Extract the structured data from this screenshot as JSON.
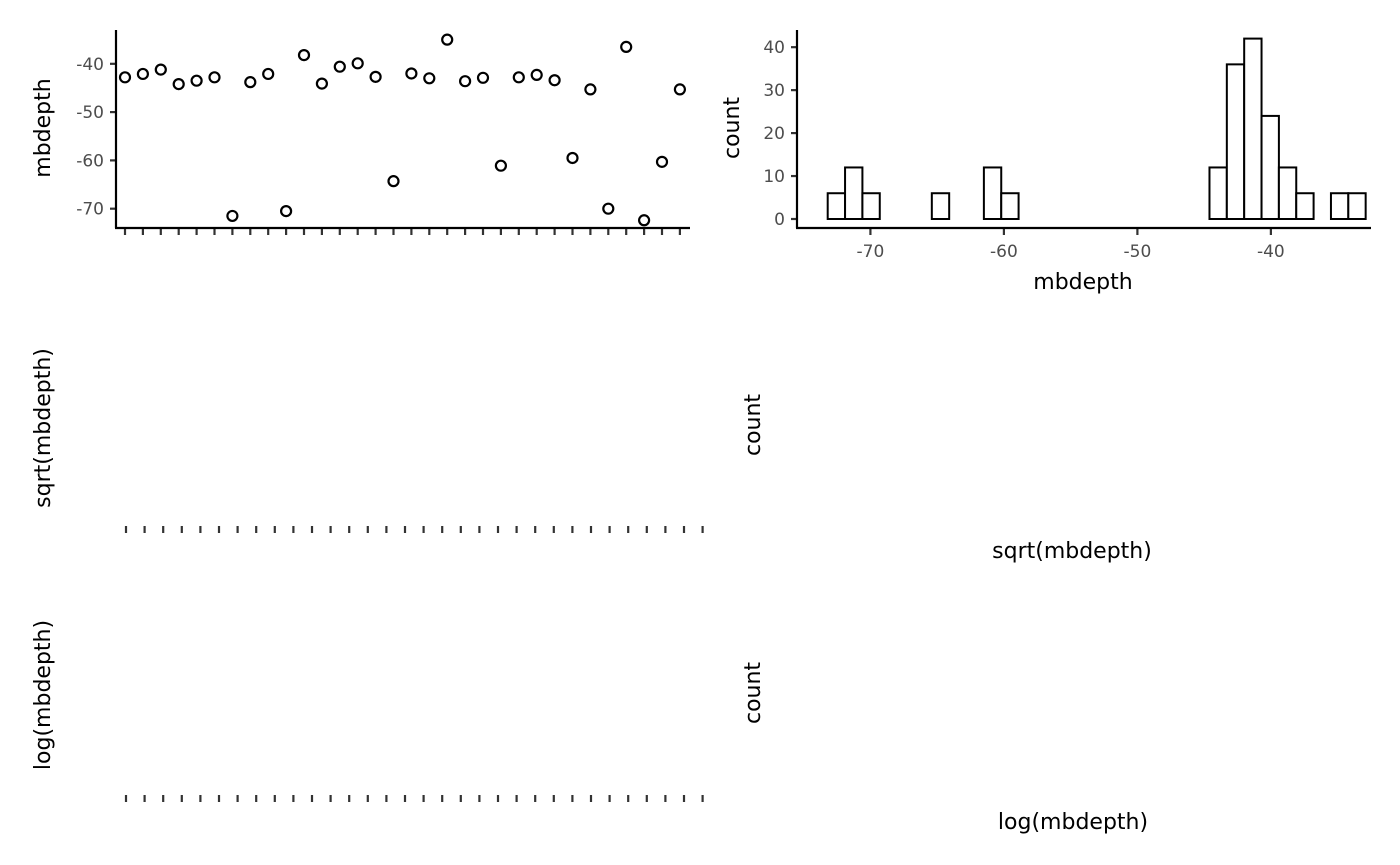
{
  "chart_data": [
    {
      "panel": "mbdepth-points",
      "type": "scatter",
      "title": "",
      "xlabel": "",
      "ylabel": "mbdepth",
      "ylim": [
        -74,
        -33
      ],
      "yticks": [
        -70,
        -60,
        -50,
        -40
      ],
      "n_points": 32,
      "values": [
        -42.8,
        -42.1,
        -41.2,
        -44.2,
        -43.5,
        -42.8,
        -71.5,
        -43.8,
        -42.1,
        -70.5,
        -38.2,
        -44.1,
        -40.6,
        -39.9,
        -42.7,
        -64.3,
        -42.0,
        -43.0,
        -35.0,
        -43.6,
        -42.9,
        -61.1,
        -42.8,
        -42.3,
        -43.4,
        -59.5,
        -45.3,
        -70.0,
        -36.5,
        -72.4,
        -60.3,
        -45.3
      ],
      "grid": false
    },
    {
      "panel": "mbdepth-histogram",
      "type": "bar",
      "title": "",
      "xlabel": "mbdepth",
      "ylabel": "count",
      "xlim": [
        -75.5,
        -32.5
      ],
      "ylim": [
        0,
        44
      ],
      "xticks": [
        -70,
        -60,
        -50,
        -40
      ],
      "yticks": [
        0,
        10,
        20,
        30,
        40
      ],
      "bin_start": -73.2,
      "bin_width": 1.3,
      "counts": [
        6,
        12,
        6,
        0,
        0,
        0,
        6,
        0,
        0,
        12,
        6,
        0,
        0,
        0,
        0,
        0,
        0,
        0,
        0,
        0,
        0,
        0,
        12,
        36,
        42,
        24,
        12,
        6,
        0,
        6,
        6
      ],
      "grid": false
    },
    {
      "panel": "sqrt-points",
      "type": "scatter",
      "title": "",
      "xlabel": "",
      "ylabel": "sqrt(mbdepth)",
      "n_points": 32,
      "values": [],
      "grid": false
    },
    {
      "panel": "sqrt-histogram",
      "type": "bar",
      "title": "",
      "xlabel": "sqrt(mbdepth)",
      "ylabel": "count",
      "counts": [],
      "grid": false
    },
    {
      "panel": "log-points",
      "type": "scatter",
      "title": "",
      "xlabel": "",
      "ylabel": "log(mbdepth)",
      "n_points": 32,
      "values": [],
      "grid": false
    },
    {
      "panel": "log-histogram",
      "type": "bar",
      "title": "",
      "xlabel": "log(mbdepth)",
      "ylabel": "count",
      "counts": [],
      "grid": false
    }
  ],
  "colors": {
    "ink": "#000000",
    "tick_text": "#4d4d4d",
    "tick_mark": "#333333",
    "background": "#ffffff",
    "bar_fill": "#ffffff"
  }
}
